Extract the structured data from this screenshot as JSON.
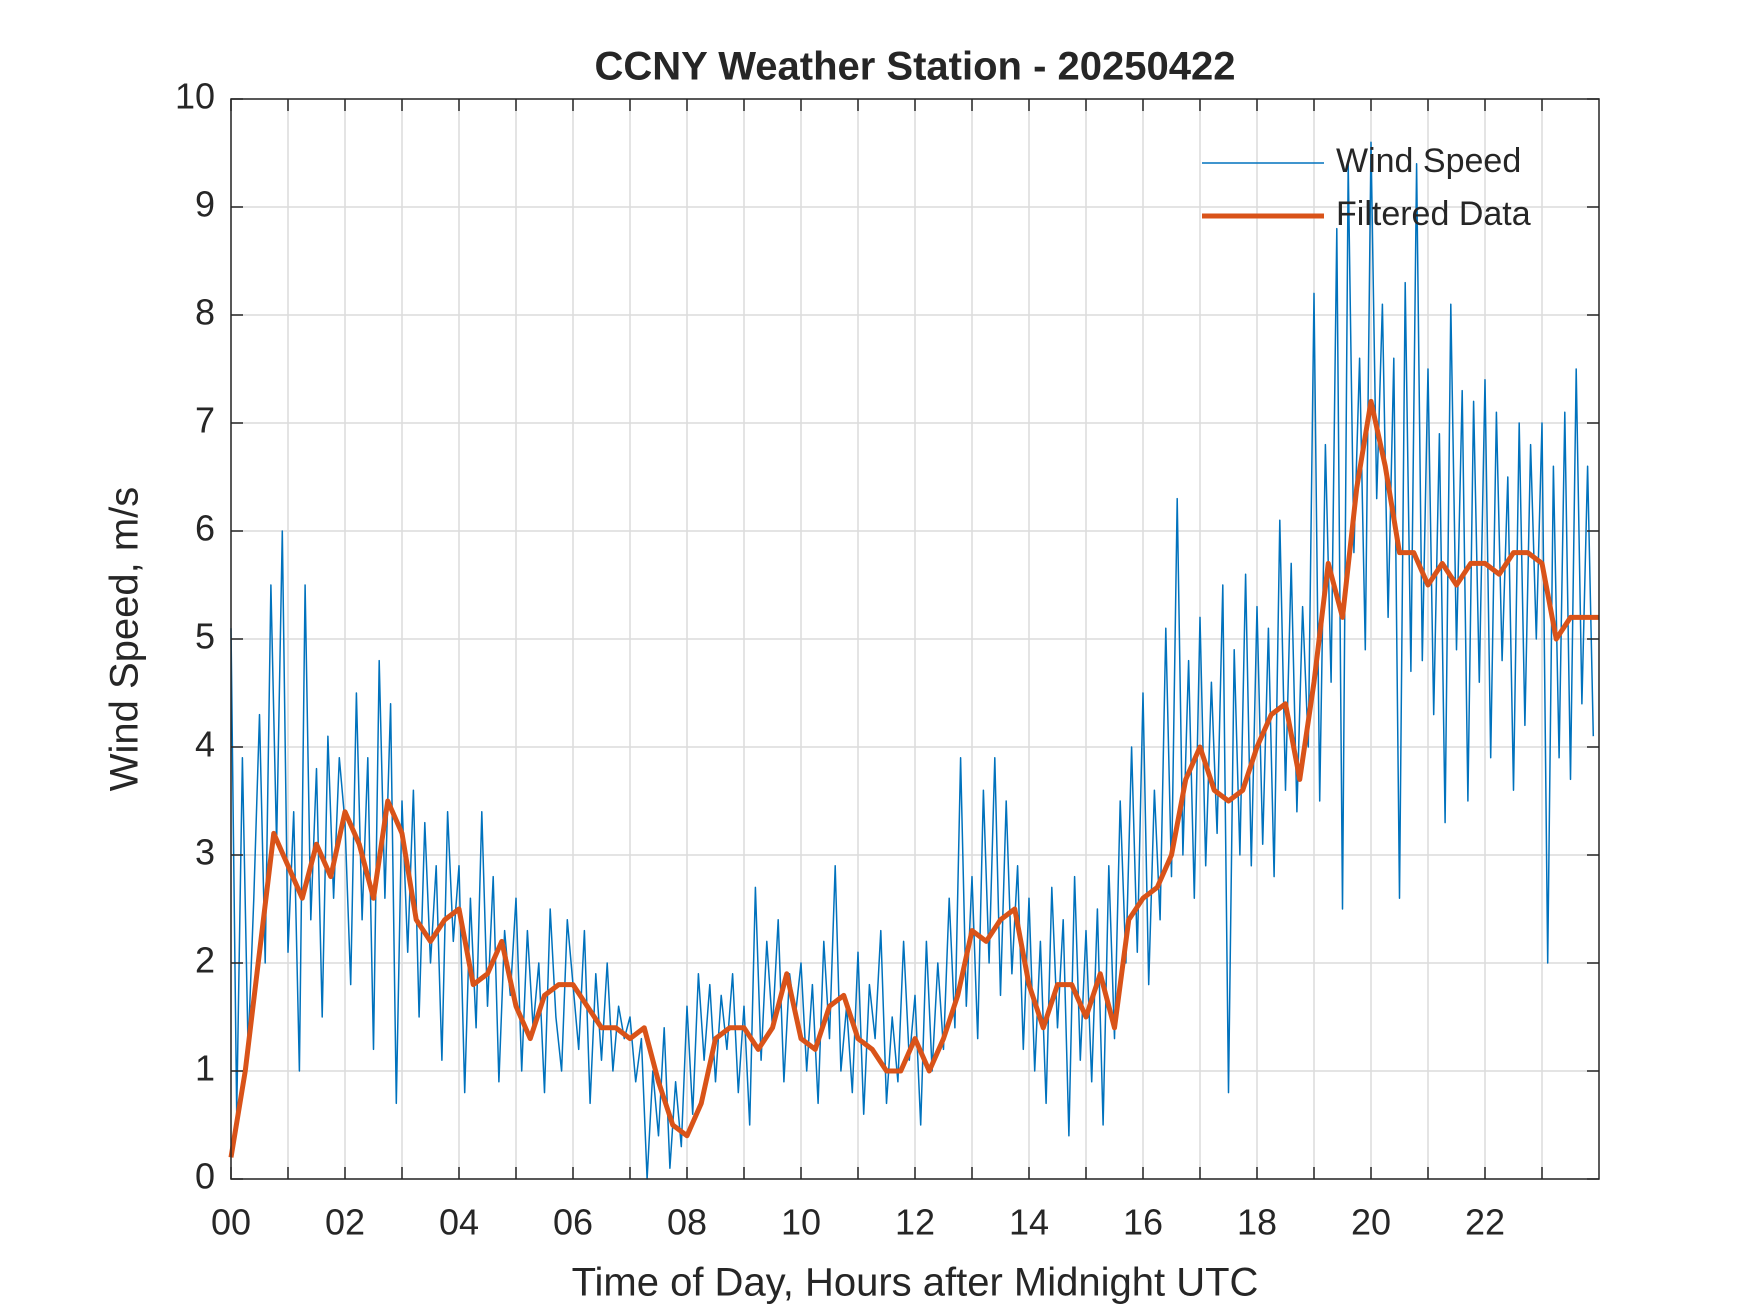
{
  "chart_data": {
    "type": "line",
    "title": "CCNY Weather Station - 20250422",
    "x_label": "Time of Day, Hours after Midnight UTC",
    "y_label": "Wind Speed, m/s",
    "xlim": [
      0,
      24
    ],
    "xticks": [
      {
        "value": 0,
        "label": "00"
      },
      {
        "value": 2,
        "label": "02"
      },
      {
        "value": 4,
        "label": "04"
      },
      {
        "value": 6,
        "label": "06"
      },
      {
        "value": 8,
        "label": "08"
      },
      {
        "value": 10,
        "label": "10"
      },
      {
        "value": 12,
        "label": "12"
      },
      {
        "value": 14,
        "label": "14"
      },
      {
        "value": 16,
        "label": "16"
      },
      {
        "value": 18,
        "label": "18"
      },
      {
        "value": 20,
        "label": "20"
      },
      {
        "value": 22,
        "label": "22"
      }
    ],
    "minor_xticks": [
      1,
      3,
      5,
      7,
      9,
      11,
      13,
      15,
      17,
      19,
      21,
      23
    ],
    "ylim": [
      0,
      10
    ],
    "yticks": [
      0,
      1,
      2,
      3,
      4,
      5,
      6,
      7,
      8,
      9,
      10
    ],
    "grid": true,
    "legend": "upper-right",
    "series": [
      {
        "name": "Wind Speed",
        "color": "#0072bd",
        "width": 1.5,
        "x": [
          0,
          0.1,
          0.2,
          0.3,
          0.4,
          0.5,
          0.6,
          0.7,
          0.8,
          0.9,
          1,
          1.1,
          1.2,
          1.3,
          1.4,
          1.5,
          1.6,
          1.7,
          1.8,
          1.9,
          2,
          2.1,
          2.2,
          2.3,
          2.4,
          2.5,
          2.6,
          2.7,
          2.8,
          2.9,
          3,
          3.1,
          3.2,
          3.3,
          3.4,
          3.5,
          3.6,
          3.7,
          3.8,
          3.9,
          4,
          4.1,
          4.2,
          4.3,
          4.4,
          4.5,
          4.6,
          4.7,
          4.8,
          4.9,
          5,
          5.1,
          5.2,
          5.3,
          5.4,
          5.5,
          5.6,
          5.7,
          5.8,
          5.9,
          6,
          6.1,
          6.2,
          6.3,
          6.4,
          6.5,
          6.6,
          6.7,
          6.8,
          6.9,
          7,
          7.1,
          7.2,
          7.3,
          7.4,
          7.5,
          7.6,
          7.7,
          7.8,
          7.9,
          8,
          8.1,
          8.2,
          8.3,
          8.4,
          8.5,
          8.6,
          8.7,
          8.8,
          8.9,
          9,
          9.1,
          9.2,
          9.3,
          9.4,
          9.5,
          9.6,
          9.7,
          9.8,
          9.9,
          10,
          10.1,
          10.2,
          10.3,
          10.4,
          10.5,
          10.6,
          10.7,
          10.8,
          10.9,
          11,
          11.1,
          11.2,
          11.3,
          11.4,
          11.5,
          11.6,
          11.7,
          11.8,
          11.9,
          12,
          12.1,
          12.2,
          12.3,
          12.4,
          12.5,
          12.6,
          12.7,
          12.8,
          12.9,
          13,
          13.1,
          13.2,
          13.3,
          13.4,
          13.5,
          13.6,
          13.7,
          13.8,
          13.9,
          14,
          14.1,
          14.2,
          14.3,
          14.4,
          14.5,
          14.6,
          14.7,
          14.8,
          14.9,
          15,
          15.1,
          15.2,
          15.3,
          15.4,
          15.5,
          15.6,
          15.7,
          15.8,
          15.9,
          16,
          16.1,
          16.2,
          16.3,
          16.4,
          16.5,
          16.6,
          16.7,
          16.8,
          16.9,
          17,
          17.1,
          17.2,
          17.3,
          17.4,
          17.5,
          17.6,
          17.7,
          17.8,
          17.9,
          18,
          18.1,
          18.2,
          18.3,
          18.4,
          18.5,
          18.6,
          18.7,
          18.8,
          18.9,
          19,
          19.1,
          19.2,
          19.3,
          19.4,
          19.5,
          19.6,
          19.7,
          19.8,
          19.9,
          20,
          20.1,
          20.2,
          20.3,
          20.4,
          20.5,
          20.6,
          20.7,
          20.8,
          20.9,
          21,
          21.1,
          21.2,
          21.3,
          21.4,
          21.5,
          21.6,
          21.7,
          21.8,
          21.9,
          22,
          22.1,
          22.2,
          22.3,
          22.4,
          22.5,
          22.6,
          22.7,
          22.8,
          22.9,
          23,
          23.1,
          23.2,
          23.3,
          23.4,
          23.5,
          23.6,
          23.7,
          23.8,
          23.9
        ],
        "values": [
          5.1,
          0.6,
          3.9,
          1.2,
          2.6,
          4.3,
          2.0,
          5.5,
          3.1,
          6.0,
          2.1,
          3.4,
          1.0,
          5.5,
          2.4,
          3.8,
          1.5,
          4.1,
          2.6,
          3.9,
          3.3,
          1.8,
          4.5,
          2.4,
          3.9,
          1.2,
          4.8,
          2.6,
          4.4,
          0.7,
          3.5,
          2.1,
          3.6,
          1.5,
          3.3,
          2.0,
          2.9,
          1.1,
          3.4,
          2.2,
          2.9,
          0.8,
          2.6,
          1.4,
          3.4,
          1.6,
          2.8,
          0.9,
          2.3,
          1.7,
          2.6,
          1.0,
          2.3,
          1.4,
          2.0,
          0.8,
          2.5,
          1.5,
          1.0,
          2.4,
          1.8,
          1.2,
          2.3,
          0.7,
          1.9,
          1.1,
          2.0,
          1.0,
          1.6,
          1.3,
          1.5,
          0.9,
          1.3,
          0.0,
          1.0,
          0.4,
          1.4,
          0.1,
          0.9,
          0.3,
          1.6,
          0.6,
          1.9,
          1.1,
          1.8,
          0.9,
          1.7,
          1.2,
          1.9,
          0.8,
          1.6,
          0.5,
          2.7,
          1.1,
          2.2,
          1.4,
          2.4,
          0.9,
          1.9,
          1.5,
          2.0,
          1.0,
          1.8,
          0.7,
          2.2,
          1.3,
          2.9,
          1.0,
          1.6,
          0.8,
          2.1,
          0.6,
          1.8,
          1.3,
          2.3,
          0.7,
          1.5,
          0.9,
          2.2,
          1.1,
          1.7,
          0.5,
          2.2,
          1.0,
          2.0,
          1.2,
          2.6,
          1.4,
          3.9,
          1.6,
          2.8,
          1.3,
          3.6,
          2.0,
          3.9,
          1.7,
          3.5,
          1.9,
          2.9,
          1.2,
          2.6,
          1.0,
          2.2,
          0.7,
          2.7,
          1.4,
          2.4,
          0.4,
          2.8,
          1.1,
          2.3,
          0.9,
          2.5,
          0.5,
          2.9,
          1.3,
          3.5,
          2.0,
          4.0,
          2.1,
          4.5,
          1.8,
          3.6,
          2.4,
          5.1,
          2.8,
          6.3,
          3.0,
          4.8,
          2.6,
          5.2,
          2.9,
          4.6,
          3.2,
          5.5,
          0.8,
          4.9,
          3.0,
          5.6,
          2.9,
          5.3,
          3.1,
          5.1,
          2.8,
          6.1,
          3.6,
          5.7,
          3.4,
          5.3,
          4.0,
          8.2,
          3.5,
          6.8,
          4.6,
          8.8,
          2.5,
          9.4,
          5.8,
          7.6,
          4.9,
          9.6,
          6.3,
          8.1,
          5.2,
          7.6,
          2.6,
          8.3,
          4.7,
          9.4,
          4.8,
          7.5,
          4.3,
          6.9,
          3.3,
          8.1,
          4.9,
          7.3,
          3.5,
          7.2,
          4.6,
          7.4,
          3.9,
          7.1,
          4.8,
          6.5,
          3.6,
          7.0,
          4.2,
          6.8,
          5.0,
          7.0,
          2.0,
          6.6,
          3.9,
          7.1,
          3.7,
          7.5,
          4.4,
          6.6,
          4.1
        ]
      },
      {
        "name": "Filtered Data",
        "color": "#d95319",
        "width": 5,
        "x": [
          0,
          0.25,
          0.5,
          0.75,
          1,
          1.25,
          1.5,
          1.75,
          2,
          2.25,
          2.5,
          2.75,
          3,
          3.25,
          3.5,
          3.75,
          4,
          4.25,
          4.5,
          4.75,
          5,
          5.25,
          5.5,
          5.75,
          6,
          6.25,
          6.5,
          6.75,
          7,
          7.25,
          7.5,
          7.75,
          8,
          8.25,
          8.5,
          8.75,
          9,
          9.25,
          9.5,
          9.75,
          10,
          10.25,
          10.5,
          10.75,
          11,
          11.25,
          11.5,
          11.75,
          12,
          12.25,
          12.5,
          12.75,
          13,
          13.25,
          13.5,
          13.75,
          14,
          14.25,
          14.5,
          14.75,
          15,
          15.25,
          15.5,
          15.75,
          16,
          16.25,
          16.5,
          16.75,
          17,
          17.25,
          17.5,
          17.75,
          18,
          18.25,
          18.5,
          18.75,
          19,
          19.25,
          19.5,
          19.75,
          20,
          20.25,
          20.5,
          20.75,
          21,
          21.25,
          21.5,
          21.75,
          22,
          22.25,
          22.5,
          22.75,
          23,
          23.25,
          23.5,
          23.75,
          24
        ],
        "values": [
          0.2,
          1.0,
          2.1,
          3.2,
          2.9,
          2.6,
          3.1,
          2.8,
          3.4,
          3.1,
          2.6,
          3.5,
          3.2,
          2.4,
          2.2,
          2.4,
          2.5,
          1.8,
          1.9,
          2.2,
          1.6,
          1.3,
          1.7,
          1.8,
          1.8,
          1.6,
          1.4,
          1.4,
          1.3,
          1.4,
          0.9,
          0.5,
          0.4,
          0.7,
          1.3,
          1.4,
          1.4,
          1.2,
          1.4,
          1.9,
          1.3,
          1.2,
          1.6,
          1.7,
          1.3,
          1.2,
          1.0,
          1.0,
          1.3,
          1.0,
          1.3,
          1.7,
          2.3,
          2.2,
          2.4,
          2.5,
          1.8,
          1.4,
          1.8,
          1.8,
          1.5,
          1.9,
          1.4,
          2.4,
          2.6,
          2.7,
          3.0,
          3.7,
          4.0,
          3.6,
          3.5,
          3.6,
          4.0,
          4.3,
          4.4,
          3.7,
          4.6,
          5.7,
          5.2,
          6.4,
          7.2,
          6.6,
          5.8,
          5.8,
          5.5,
          5.7,
          5.5,
          5.7,
          5.7,
          5.6,
          5.8,
          5.8,
          5.7,
          5.0,
          5.2,
          5.2,
          5.2
        ]
      }
    ]
  }
}
